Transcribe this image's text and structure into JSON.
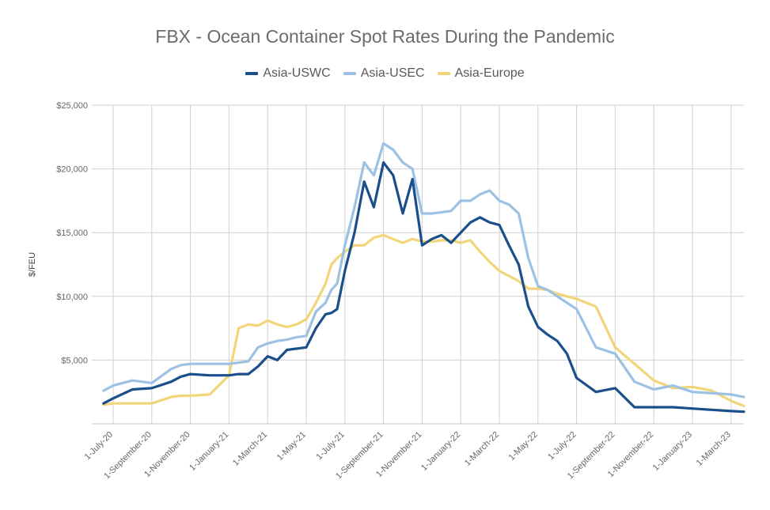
{
  "chart_data": {
    "type": "line",
    "title": "FBX - Ocean Container Spot Rates During the Pandemic",
    "xlabel": "",
    "ylabel": "$/FEU",
    "ylim": [
      0,
      25000
    ],
    "y_ticks": [
      5000,
      10000,
      15000,
      20000,
      25000
    ],
    "y_tick_labels": [
      "$5,000",
      "$10,000",
      "$15,000",
      "$20,000",
      "$25,000"
    ],
    "x_tick_labels": [
      "1-July-20",
      "1-September-20",
      "1-November-20",
      "1-January-21",
      "1-March-21",
      "1-May-21",
      "1-July-21",
      "1-September-21",
      "1-November-21",
      "1-January-22",
      "1-March-22",
      "1-May-22",
      "1-July-22",
      "1-September-22",
      "1-November-22",
      "1-January-23",
      "1-March-23"
    ],
    "legend_position": "top-center",
    "grid": true,
    "x_months": [
      -0.5,
      0,
      1,
      2,
      3,
      3.5,
      4,
      5,
      6,
      6.5,
      7,
      7.5,
      8,
      8.5,
      9,
      9.5,
      10,
      10.5,
      11,
      11.3,
      11.6,
      12,
      12.5,
      13,
      13.5,
      14,
      14.5,
      15,
      15.5,
      16,
      16.5,
      17,
      17.5,
      18,
      18.5,
      19,
      19.5,
      20,
      20.5,
      21,
      21.5,
      22,
      22.5,
      23,
      23.5,
      24,
      25,
      26,
      27,
      28,
      29,
      30,
      31,
      32,
      33.3
    ],
    "series": [
      {
        "name": "Asia-USWC",
        "color": "#1a4f8b",
        "values": [
          1600,
          2000,
          2700,
          2800,
          3300,
          3700,
          3900,
          3800,
          3800,
          3900,
          3900,
          4500,
          5300,
          5000,
          5800,
          5900,
          6000,
          7500,
          8600,
          8700,
          9000,
          12000,
          15000,
          19000,
          17000,
          20500,
          19500,
          16500,
          19200,
          14000,
          14500,
          14800,
          14200,
          15000,
          15800,
          16200,
          15800,
          15600,
          14000,
          12500,
          9200,
          7600,
          7000,
          6500,
          5500,
          3600,
          2500,
          2800,
          1300,
          1300,
          1300,
          1200,
          1100,
          1000,
          950
        ]
      },
      {
        "name": "Asia-USEC",
        "color": "#9cc1e3",
        "values": [
          2600,
          3000,
          3400,
          3200,
          4300,
          4600,
          4700,
          4700,
          4700,
          4800,
          4900,
          6000,
          6300,
          6500,
          6600,
          6800,
          6900,
          8800,
          9500,
          10500,
          11000,
          14000,
          17000,
          20500,
          19500,
          22000,
          21500,
          20500,
          20000,
          16500,
          16500,
          16600,
          16700,
          17500,
          17500,
          18000,
          18300,
          17500,
          17200,
          16500,
          13000,
          10800,
          10500,
          10000,
          9500,
          9000,
          6000,
          5500,
          3300,
          2700,
          3000,
          2500,
          2400,
          2300,
          2100
        ]
      },
      {
        "name": "Asia-Europe",
        "color": "#f2d579",
        "values": [
          1500,
          1600,
          1600,
          1600,
          2100,
          2200,
          2200,
          2300,
          3800,
          7500,
          7800,
          7700,
          8100,
          7800,
          7600,
          7800,
          8200,
          9500,
          11000,
          12500,
          13000,
          13500,
          14000,
          14000,
          14600,
          14800,
          14500,
          14200,
          14500,
          14300,
          14300,
          14400,
          14400,
          14200,
          14400,
          13500,
          12700,
          12000,
          11600,
          11200,
          10600,
          10600,
          10500,
          10200,
          10000,
          9800,
          9200,
          6000,
          4700,
          3400,
          2800,
          2900,
          2600,
          1800,
          1400
        ]
      }
    ]
  }
}
